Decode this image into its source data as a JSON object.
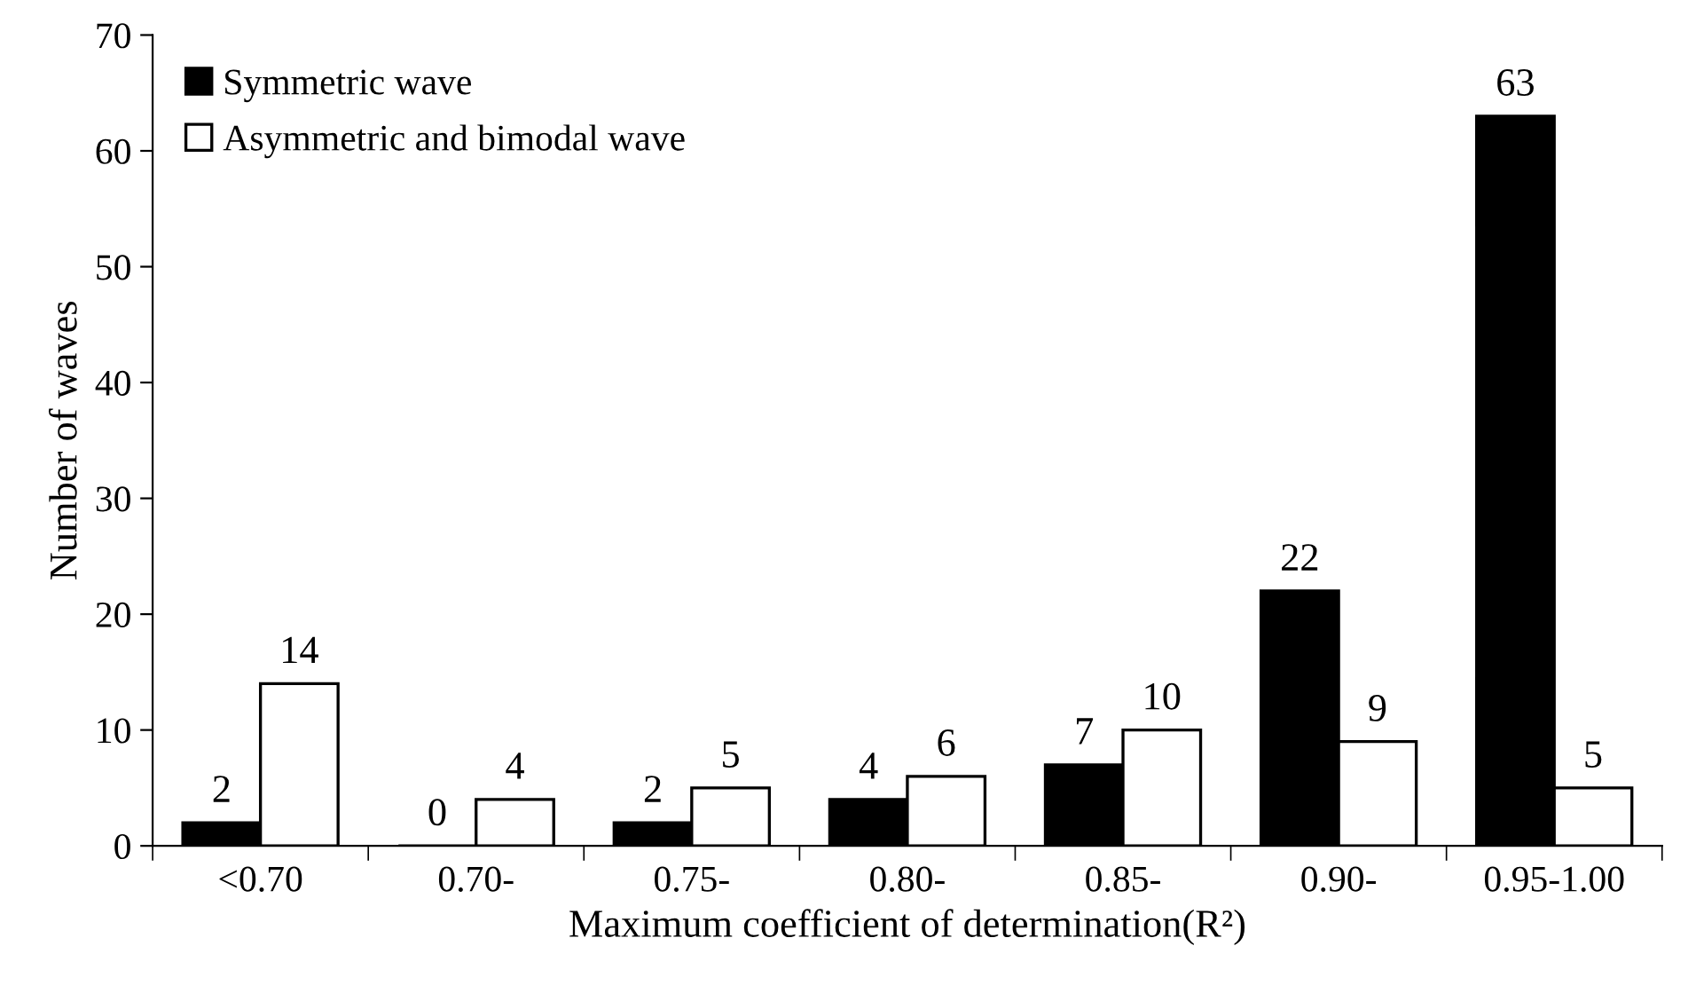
{
  "chart_data": {
    "type": "bar",
    "xlabel": "Maximum coefficient of determination(R²)",
    "ylabel": "Number of waves",
    "categories": [
      "<0.70",
      "0.70-",
      "0.75-",
      "0.80-",
      "0.85-",
      "0.90-",
      "0.95-1.00"
    ],
    "series": [
      {
        "name": "Symmetric wave",
        "color": "#000000",
        "values": [
          2,
          0,
          2,
          4,
          7,
          22,
          63
        ]
      },
      {
        "name": "Asymmetric and bimodal wave",
        "color": "#ffffff",
        "values": [
          14,
          4,
          5,
          6,
          10,
          9,
          5
        ]
      }
    ],
    "ylim": [
      0,
      70
    ],
    "yticks": [
      0,
      10,
      20,
      30,
      40,
      50,
      60,
      70
    ],
    "data_labels": true,
    "legend": "top left",
    "grid": false
  }
}
